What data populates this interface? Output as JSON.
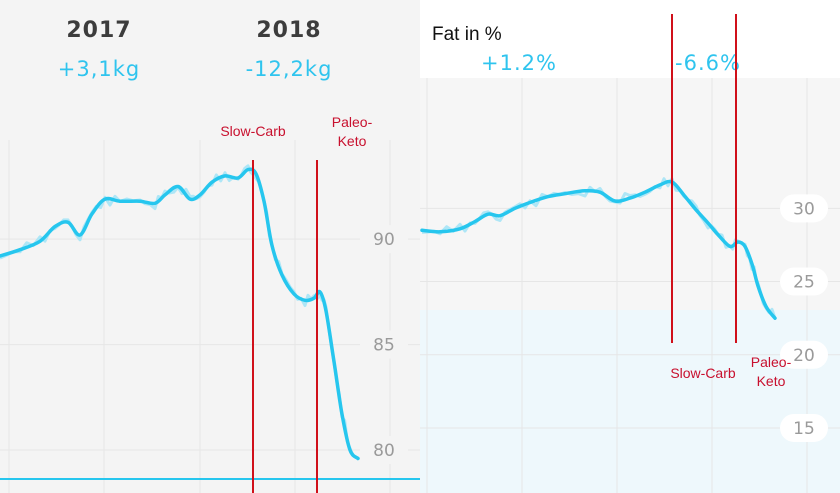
{
  "colors": {
    "series": "#26c6ee",
    "raw": "#aee6f6",
    "marker": "#d0101a",
    "panel_bg": "#f4f4f4",
    "band": "#eef8fc",
    "grid": "#e6e6e6"
  },
  "chart_data": [
    {
      "type": "line",
      "title": "",
      "year_labels": [
        "2017",
        "2018"
      ],
      "deltas": [
        "+3,1kg",
        "-12,2kg"
      ],
      "ylabel": "",
      "ylim": [
        78.2,
        96.6
      ],
      "yticks": [
        "90",
        "85",
        "80"
      ],
      "ytick_values": [
        90,
        85,
        80
      ],
      "annotations": [
        {
          "label": "Slow-Carb",
          "x": 253
        },
        {
          "label": "Paleo-Keto",
          "x": 317
        }
      ],
      "series": [
        {
          "values": [
            [
              0,
              89.2
            ],
            [
              20,
              89.5
            ],
            [
              40,
              89.9
            ],
            [
              55,
              90.6
            ],
            [
              68,
              90.8
            ],
            [
              80,
              90.2
            ],
            [
              92,
              91.2
            ],
            [
              105,
              91.9
            ],
            [
              120,
              91.8
            ],
            [
              140,
              91.8
            ],
            [
              155,
              91.7
            ],
            [
              165,
              92.1
            ],
            [
              178,
              92.5
            ],
            [
              190,
              91.9
            ],
            [
              200,
              92.1
            ],
            [
              212,
              92.7
            ],
            [
              225,
              93.0
            ],
            [
              238,
              92.9
            ],
            [
              248,
              93.3
            ],
            [
              256,
              93.1
            ],
            [
              264,
              91.8
            ],
            [
              272,
              89.7
            ],
            [
              282,
              88.3
            ],
            [
              294,
              87.4
            ],
            [
              305,
              87.1
            ],
            [
              314,
              87.2
            ],
            [
              320,
              87.5
            ],
            [
              326,
              86.6
            ],
            [
              334,
              84.2
            ],
            [
              342,
              81.7
            ],
            [
              350,
              80.0
            ],
            [
              358,
              79.6
            ]
          ]
        }
      ]
    },
    {
      "type": "line",
      "title": "Fat in %",
      "deltas": [
        "+1.2%",
        "-6.6%"
      ],
      "ylabel": "",
      "ylim": [
        10.9,
        37.4
      ],
      "yticks": [
        "30",
        "25",
        "20",
        "15"
      ],
      "ytick_values": [
        30,
        25,
        20,
        15
      ],
      "annotations": [
        {
          "label": "Slow-Carb",
          "x": 672
        },
        {
          "label": "Paleo-Keto",
          "x": 736
        }
      ],
      "series": [
        {
          "values": [
            [
              422,
              28.5
            ],
            [
              440,
              28.4
            ],
            [
              460,
              28.6
            ],
            [
              475,
              29.1
            ],
            [
              488,
              29.6
            ],
            [
              500,
              29.5
            ],
            [
              515,
              30.0
            ],
            [
              530,
              30.4
            ],
            [
              548,
              30.8
            ],
            [
              565,
              31.0
            ],
            [
              585,
              31.2
            ],
            [
              600,
              31.1
            ],
            [
              615,
              30.5
            ],
            [
              630,
              30.7
            ],
            [
              645,
              31.1
            ],
            [
              660,
              31.6
            ],
            [
              672,
              31.8
            ],
            [
              684,
              30.9
            ],
            [
              696,
              29.9
            ],
            [
              708,
              29.0
            ],
            [
              718,
              28.2
            ],
            [
              730,
              27.4
            ],
            [
              738,
              27.7
            ],
            [
              745,
              27.4
            ],
            [
              752,
              26.2
            ],
            [
              758,
              24.7
            ],
            [
              766,
              23.3
            ],
            [
              775,
              22.5
            ]
          ]
        }
      ]
    }
  ]
}
